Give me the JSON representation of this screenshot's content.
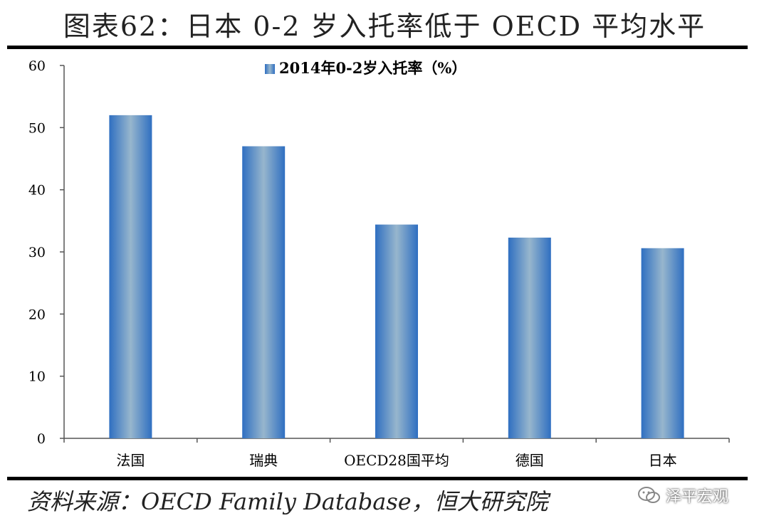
{
  "header": {
    "title": "图表62：日本 0-2 岁入托率低于 OECD 平均水平"
  },
  "chart_data": {
    "type": "bar",
    "categories": [
      "法国",
      "瑞典",
      "OECD28国平均",
      "德国",
      "日本"
    ],
    "series": [
      {
        "name": "2014年0-2岁入托率（%）",
        "values": [
          52.0,
          47.0,
          34.4,
          32.3,
          30.6
        ]
      }
    ],
    "ylim": [
      0,
      60
    ],
    "yticks": [
      0,
      10,
      20,
      30,
      40,
      50,
      60
    ],
    "legend_position": "top-center",
    "grid": false,
    "colors": {
      "bar_edge": "#2f6fc1",
      "bar_center": "#97b6cd"
    }
  },
  "footer": {
    "source": "资料来源：OECD Family Database，恒大研究院",
    "watermark": "泽平宏观"
  }
}
